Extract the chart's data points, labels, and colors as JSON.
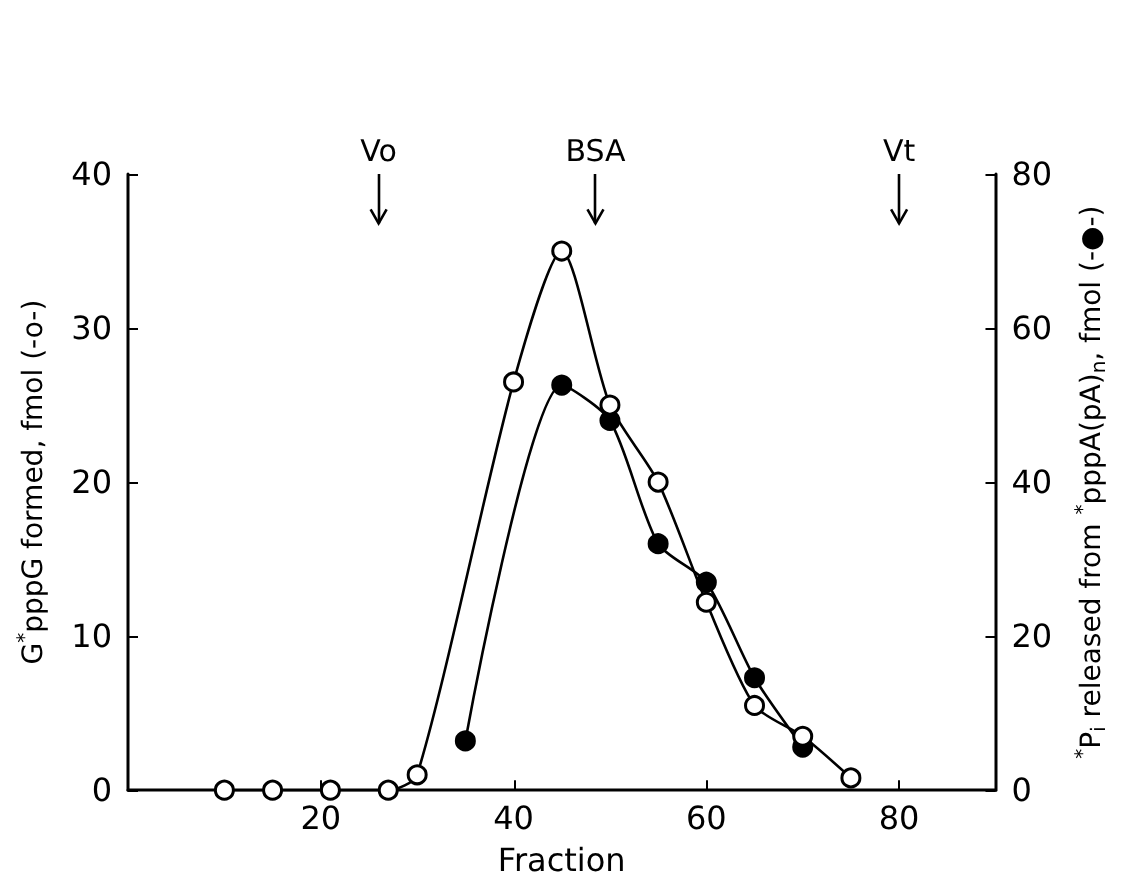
{
  "chart_data": {
    "type": "line",
    "xlabel": "Fraction",
    "ylabel": "G$^{*}$pppG formed, fmol (-o-)",
    "y2label": "$^{*}$P$_{i}$ released from $^{*}$pppA(pA)$_{n}$, fmol (-●-)",
    "xlim": [
      0,
      90
    ],
    "xticks": [
      20,
      40,
      60,
      80
    ],
    "ylim": [
      0,
      40
    ],
    "yticks": [
      0,
      10,
      20,
      30,
      40
    ],
    "y2lim": [
      0,
      80
    ],
    "y2ticks": [
      0,
      20,
      40,
      60,
      80
    ],
    "series": [
      {
        "color": "#000000",
        "marker": "circle",
        "x": [
          10,
          15,
          21,
          27,
          30,
          40,
          45,
          50,
          55,
          60,
          65,
          70,
          75
        ],
        "values": [
          0,
          0,
          0,
          0,
          1,
          26.5,
          35,
          25,
          20,
          12.2,
          5.5,
          3.5,
          0.8
        ]
      },
      {
        "color": "#000000",
        "marker": "circle",
        "axis": "y2",
        "x": [
          35,
          45,
          50,
          55,
          60,
          65,
          70
        ],
        "values": [
          6.4,
          52.6,
          48,
          32,
          27,
          14.6,
          5.6
        ]
      }
    ],
    "ref_lines": [
      {
        "axis": "x",
        "value": 26,
        "label": "Vo"
      },
      {
        "axis": "x",
        "value": 48.5,
        "label": "BSA"
      },
      {
        "axis": "x",
        "value": 80,
        "label": "Vt"
      }
    ],
    "grid": false
  }
}
